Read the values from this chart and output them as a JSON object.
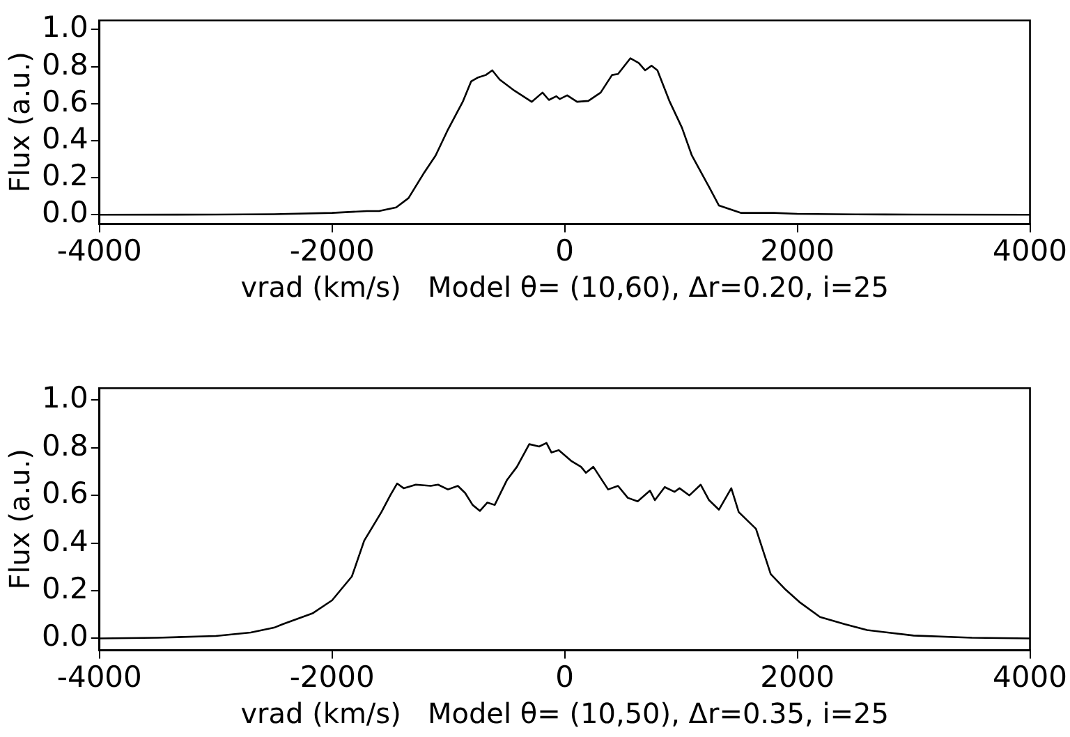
{
  "chart_data": [
    {
      "type": "line",
      "xlabel": "vrad (km/s)   Model θ= (10,60), Δr=0.20, i=25",
      "ylabel": "Flux (a.u.)",
      "xlim": [
        -4000,
        4000
      ],
      "xticks": [
        -4000,
        -2000,
        0,
        2000,
        4000
      ],
      "ylim": [
        -0.05,
        1.05
      ],
      "yticks": [
        {
          "value": 0,
          "label": "0.0"
        },
        {
          "value": 0.2,
          "label": "0.2"
        },
        {
          "value": 0.4,
          "label": "0.4"
        },
        {
          "value": 0.6,
          "label": "0.6"
        },
        {
          "value": 0.8,
          "label": "0.8"
        },
        {
          "value": 1,
          "label": "1.0"
        }
      ],
      "grid": false,
      "legend": false,
      "marker": "none",
      "line_style": "solid",
      "series": [
        {
          "color": "#000000",
          "x": [
            -4000,
            -3000,
            -2500,
            -2000,
            -1700,
            -1597,
            -1449,
            -1343,
            -1216,
            -1110,
            -1004,
            -877,
            -805,
            -750,
            -678,
            -623,
            -559,
            -432,
            -284,
            -191,
            -136,
            -72,
            -42,
            21,
            106,
            203,
            309,
            407,
            458,
            564,
            636,
            691,
            746,
            797,
            903,
            1008,
            1093,
            1241,
            1326,
            1517,
            1800,
            2000,
            2500,
            3000,
            4000
          ],
          "values": [
            0,
            0.001,
            0.003,
            0.01,
            0.02,
            0.02,
            0.04,
            0.09,
            0.22,
            0.32,
            0.46,
            0.61,
            0.72,
            0.74,
            0.755,
            0.78,
            0.73,
            0.67,
            0.61,
            0.66,
            0.62,
            0.64,
            0.625,
            0.645,
            0.61,
            0.615,
            0.66,
            0.755,
            0.76,
            0.845,
            0.82,
            0.78,
            0.805,
            0.78,
            0.61,
            0.47,
            0.32,
            0.15,
            0.05,
            0.01,
            0.01,
            0.005,
            0.002,
            0.001,
            0
          ]
        }
      ]
    },
    {
      "type": "line",
      "xlabel": "vrad (km/s)   Model θ= (10,50), Δr=0.35, i=25",
      "ylabel": "Flux (a.u.)",
      "xlim": [
        -4000,
        4000
      ],
      "xticks": [
        -4000,
        -2000,
        0,
        2000,
        4000
      ],
      "ylim": [
        -0.05,
        1.05
      ],
      "yticks": [
        {
          "value": 0,
          "label": "0.0"
        },
        {
          "value": 0.2,
          "label": "0.2"
        },
        {
          "value": 0.4,
          "label": "0.4"
        },
        {
          "value": 0.6,
          "label": "0.6"
        },
        {
          "value": 0.8,
          "label": "0.8"
        },
        {
          "value": 1,
          "label": "1.0"
        }
      ],
      "grid": false,
      "legend": false,
      "marker": "none",
      "line_style": "solid",
      "series": [
        {
          "color": "#000000",
          "x": [
            -4000,
            -3500,
            -3000,
            -2700,
            -2500,
            -2424,
            -2169,
            -2000,
            -1830,
            -1724,
            -1576,
            -1500,
            -1441,
            -1385,
            -1280,
            -1152,
            -1089,
            -1004,
            -919,
            -856,
            -792,
            -729,
            -665,
            -602,
            -496,
            -411,
            -305,
            -220,
            -157,
            -114,
            -51,
            55,
            140,
            182,
            246,
            373,
            458,
            542,
            627,
            733,
            775,
            860,
            945,
            987,
            1072,
            1169,
            1241,
            1326,
            1432,
            1496,
            1644,
            1771,
            1898,
            2025,
            2195,
            2407,
            2600,
            3000,
            3500,
            4000
          ],
          "values": [
            0,
            0.003,
            0.01,
            0.025,
            0.045,
            0.06,
            0.105,
            0.16,
            0.26,
            0.41,
            0.53,
            0.6,
            0.65,
            0.63,
            0.645,
            0.64,
            0.645,
            0.625,
            0.64,
            0.61,
            0.56,
            0.535,
            0.57,
            0.56,
            0.665,
            0.72,
            0.815,
            0.805,
            0.82,
            0.78,
            0.79,
            0.745,
            0.72,
            0.695,
            0.72,
            0.625,
            0.64,
            0.59,
            0.575,
            0.62,
            0.58,
            0.635,
            0.615,
            0.63,
            0.6,
            0.645,
            0.58,
            0.54,
            0.63,
            0.53,
            0.46,
            0.27,
            0.205,
            0.15,
            0.09,
            0.06,
            0.035,
            0.012,
            0.003,
            0
          ]
        }
      ]
    }
  ]
}
